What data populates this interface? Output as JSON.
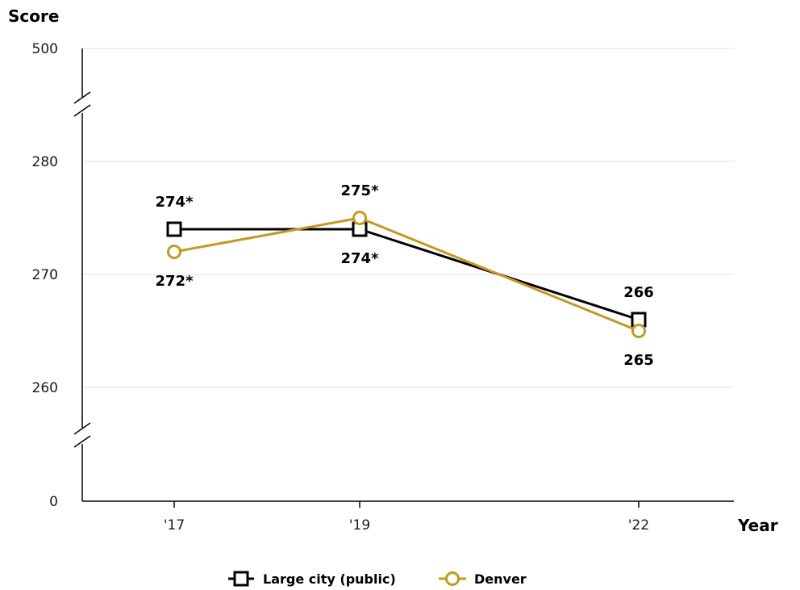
{
  "chart_data": {
    "type": "line",
    "ylabel": "Score",
    "xlabel": "Year",
    "categories": [
      "'17",
      "'19",
      "'22"
    ],
    "x": [
      2017,
      2019,
      2022
    ],
    "y_ticks": [
      "500",
      "280",
      "270",
      "260",
      "0"
    ],
    "y_scale_note": "broken axis: 0 and 500 shown with breaks",
    "ylim_visible": [
      260,
      280
    ],
    "series": [
      {
        "name": "Large city (public)",
        "marker": "square",
        "color": "#000000",
        "values": [
          274,
          274,
          266
        ],
        "labels": [
          "274*",
          "274*",
          "266"
        ]
      },
      {
        "name": "Denver",
        "marker": "circle",
        "color": "#c49a1e",
        "values": [
          272,
          275,
          265
        ],
        "labels": [
          "272*",
          "275*",
          "265"
        ]
      }
    ],
    "grid": true,
    "legend": "bottom-center"
  }
}
